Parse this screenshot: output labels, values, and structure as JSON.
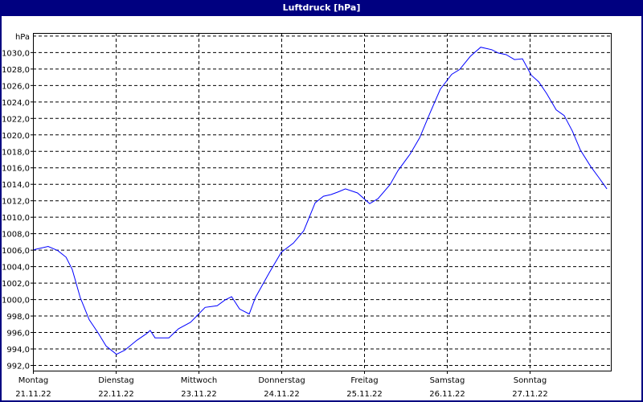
{
  "window": {
    "title": "Luftdruck [hPa]"
  },
  "chart_data": {
    "type": "line",
    "title": "Luftdruck [hPa]",
    "ylabel": "hPa",
    "ylim": [
      991.3,
      1032
    ],
    "yticks": [
      992,
      994,
      996,
      998,
      1000,
      1002,
      1004,
      1006,
      1008,
      1010,
      1012,
      1014,
      1016,
      1018,
      1020,
      1022,
      1024,
      1026,
      1028,
      1030
    ],
    "ytick_labels": [
      "992,0",
      "994,0",
      "996,0",
      "998,0",
      "1000,0",
      "1002,0",
      "1004,0",
      "1006,0",
      "1008,0",
      "1010,0",
      "1012,0",
      "1014,0",
      "1016,0",
      "1018,0",
      "1020,0",
      "1022,0",
      "1024,0",
      "1026,0",
      "1028,0",
      "1030,0"
    ],
    "xlim": [
      "2022-11-21T00:00",
      "2022-11-28T00:00"
    ],
    "xticks": [
      {
        "day": "Montag",
        "date": "21.11.22"
      },
      {
        "day": "Dienstag",
        "date": "22.11.22"
      },
      {
        "day": "Mittwoch",
        "date": "23.11.22"
      },
      {
        "day": "Donnerstag",
        "date": "24.11.22"
      },
      {
        "day": "Freitag",
        "date": "25.11.22"
      },
      {
        "day": "Samstag",
        "date": "26.11.22"
      },
      {
        "day": "Sonntag",
        "date": "27.11.22"
      }
    ],
    "grid": true,
    "line_color": "#0000ff",
    "series": [
      {
        "x": [
          "2022-11-21T00:12",
          "2022-11-21T04:24",
          "2022-11-21T07:12",
          "2022-11-21T09:36",
          "2022-11-21T11:24",
          "2022-11-21T13:42",
          "2022-11-21T16:18",
          "2022-11-21T18:54",
          "2022-11-21T21:12",
          "2022-11-22T00:12",
          "2022-11-22T02:36",
          "2022-11-22T06:06",
          "2022-11-22T08:54",
          "2022-11-22T10:00",
          "2022-11-22T11:24",
          "2022-11-22T15:24",
          "2022-11-22T18:12",
          "2022-11-22T21:42",
          "2022-11-23T01:54",
          "2022-11-23T05:24",
          "2022-11-23T07:42",
          "2022-11-23T09:36",
          "2022-11-23T11:54",
          "2022-11-23T14:42",
          "2022-11-23T16:30",
          "2022-11-23T20:30",
          "2022-11-24T00:00",
          "2022-11-24T03:30",
          "2022-11-24T06:30",
          "2022-11-24T09:48",
          "2022-11-24T12:12",
          "2022-11-24T14:24",
          "2022-11-24T16:18",
          "2022-11-24T18:36",
          "2022-11-24T22:06",
          "2022-11-25T01:36",
          "2022-11-25T04:00",
          "2022-11-25T07:30",
          "2022-11-25T09:48",
          "2022-11-25T13:18",
          "2022-11-25T16:06",
          "2022-11-25T19:12",
          "2022-11-25T22:06",
          "2022-11-26T01:24",
          "2022-11-26T03:42",
          "2022-11-26T06:48",
          "2022-11-26T09:48",
          "2022-11-26T13:00",
          "2022-11-26T14:54",
          "2022-11-26T17:12",
          "2022-11-26T19:36",
          "2022-11-26T21:54",
          "2022-11-27T00:30",
          "2022-11-27T02:36",
          "2022-11-27T04:54",
          "2022-11-27T07:42",
          "2022-11-27T10:00",
          "2022-11-27T12:24",
          "2022-11-27T14:42",
          "2022-11-27T17:42",
          "2022-11-27T20:00",
          "2022-11-27T22:24"
        ],
        "y": [
          1006.0,
          1006.4,
          1005.9,
          1005.1,
          1003.6,
          1000.2,
          997.5,
          995.9,
          994.3,
          993.3,
          993.8,
          995.0,
          995.8,
          996.2,
          995.3,
          995.3,
          996.4,
          997.2,
          999.0,
          999.2,
          999.9,
          1000.3,
          998.8,
          998.2,
          1000.2,
          1003.2,
          1005.7,
          1006.8,
          1008.3,
          1011.7,
          1012.5,
          1012.7,
          1013.0,
          1013.4,
          1012.9,
          1011.6,
          1012.2,
          1013.9,
          1015.6,
          1017.6,
          1019.6,
          1022.7,
          1025.5,
          1027.3,
          1027.9,
          1029.5,
          1030.6,
          1030.3,
          1029.9,
          1029.7,
          1029.1,
          1029.2,
          1027.2,
          1026.4,
          1025.0,
          1023.0,
          1022.3,
          1020.4,
          1018.1,
          1016.1,
          1014.8,
          1013.4
        ]
      }
    ]
  }
}
